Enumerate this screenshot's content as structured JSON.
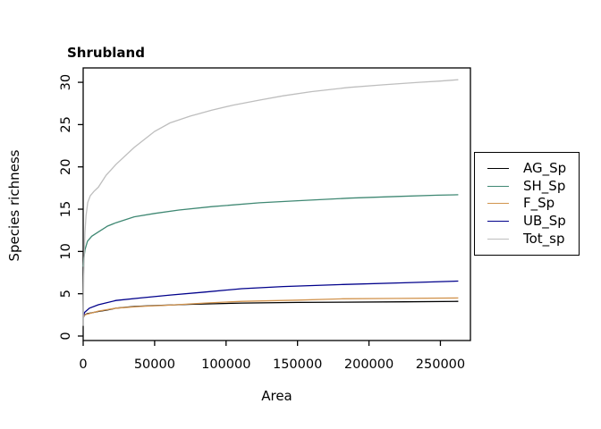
{
  "chart_data": {
    "type": "line",
    "title": "Shrubland",
    "xlabel": "Area",
    "ylabel": "Species richness",
    "x_ticks": [
      0,
      50000,
      100000,
      150000,
      200000,
      250000
    ],
    "x_tick_labels": [
      "0",
      "50000",
      "100000",
      "150000",
      "200000",
      "250000"
    ],
    "y_ticks": [
      0,
      5,
      10,
      15,
      20,
      25,
      30
    ],
    "y_tick_labels": [
      "0",
      "5",
      "10",
      "15",
      "20",
      "25",
      "30"
    ],
    "xlim": [
      0,
      271000
    ],
    "ylim": [
      -0.53,
      31.7
    ],
    "grid": false,
    "legend_position": "right-outside",
    "axis_color": "#000000",
    "series": [
      {
        "name": "AG_Sp",
        "color": "#000000",
        "points": [
          [
            200,
            2.2
          ],
          [
            600,
            2.4
          ],
          [
            1500,
            2.55
          ],
          [
            3000,
            2.65
          ],
          [
            6000,
            2.75
          ],
          [
            10600,
            2.9
          ],
          [
            16000,
            3.05
          ],
          [
            23000,
            3.3
          ],
          [
            36000,
            3.5
          ],
          [
            50000,
            3.6
          ],
          [
            75000,
            3.75
          ],
          [
            111000,
            3.9
          ],
          [
            150000,
            3.97
          ],
          [
            182000,
            4.0
          ],
          [
            225000,
            4.05
          ],
          [
            262500,
            4.1
          ]
        ]
      },
      {
        "name": "SH_Sp",
        "color": "#3F8873",
        "points": [
          [
            150,
            8.2
          ],
          [
            500,
            9.2
          ],
          [
            1250,
            10.2
          ],
          [
            3000,
            11.2
          ],
          [
            6000,
            11.8
          ],
          [
            10600,
            12.3
          ],
          [
            17000,
            13.0
          ],
          [
            23000,
            13.4
          ],
          [
            35700,
            14.1
          ],
          [
            50000,
            14.5
          ],
          [
            67000,
            14.9
          ],
          [
            90000,
            15.3
          ],
          [
            123400,
            15.75
          ],
          [
            150000,
            16.0
          ],
          [
            186000,
            16.3
          ],
          [
            220000,
            16.5
          ],
          [
            248000,
            16.65
          ],
          [
            262500,
            16.7
          ]
        ]
      },
      {
        "name": "F_Sp",
        "color": "#D2944E",
        "points": [
          [
            200,
            2.3
          ],
          [
            1000,
            2.5
          ],
          [
            4400,
            2.65
          ],
          [
            10600,
            2.95
          ],
          [
            23000,
            3.3
          ],
          [
            40000,
            3.5
          ],
          [
            61000,
            3.65
          ],
          [
            85000,
            3.9
          ],
          [
            111000,
            4.1
          ],
          [
            150000,
            4.25
          ],
          [
            182000,
            4.4
          ],
          [
            220000,
            4.45
          ],
          [
            262500,
            4.5
          ]
        ]
      },
      {
        "name": "UB_Sp",
        "color": "#00008B",
        "points": [
          [
            200,
            2.4
          ],
          [
            1000,
            2.8
          ],
          [
            4400,
            3.3
          ],
          [
            10600,
            3.7
          ],
          [
            23000,
            4.2
          ],
          [
            40000,
            4.5
          ],
          [
            61000,
            4.85
          ],
          [
            85000,
            5.2
          ],
          [
            111000,
            5.6
          ],
          [
            140000,
            5.85
          ],
          [
            182000,
            6.1
          ],
          [
            225000,
            6.3
          ],
          [
            262500,
            6.5
          ]
        ]
      },
      {
        "name": "Tot_sp",
        "color": "#BEBEBE",
        "points": [
          [
            40,
            1.2
          ],
          [
            150,
            3.5
          ],
          [
            400,
            7.0
          ],
          [
            800,
            10.2
          ],
          [
            1250,
            12.3
          ],
          [
            2000,
            14.2
          ],
          [
            3200,
            15.8
          ],
          [
            5000,
            16.6
          ],
          [
            7500,
            17.1
          ],
          [
            10650,
            17.6
          ],
          [
            16000,
            19.0
          ],
          [
            23000,
            20.3
          ],
          [
            35700,
            22.3
          ],
          [
            50000,
            24.2
          ],
          [
            60800,
            25.2
          ],
          [
            75000,
            26.0
          ],
          [
            90000,
            26.7
          ],
          [
            105000,
            27.3
          ],
          [
            123400,
            27.9
          ],
          [
            140000,
            28.4
          ],
          [
            160000,
            28.9
          ],
          [
            186000,
            29.4
          ],
          [
            210000,
            29.7
          ],
          [
            235000,
            30.0
          ],
          [
            250000,
            30.15
          ],
          [
            262500,
            30.3
          ]
        ]
      }
    ]
  }
}
